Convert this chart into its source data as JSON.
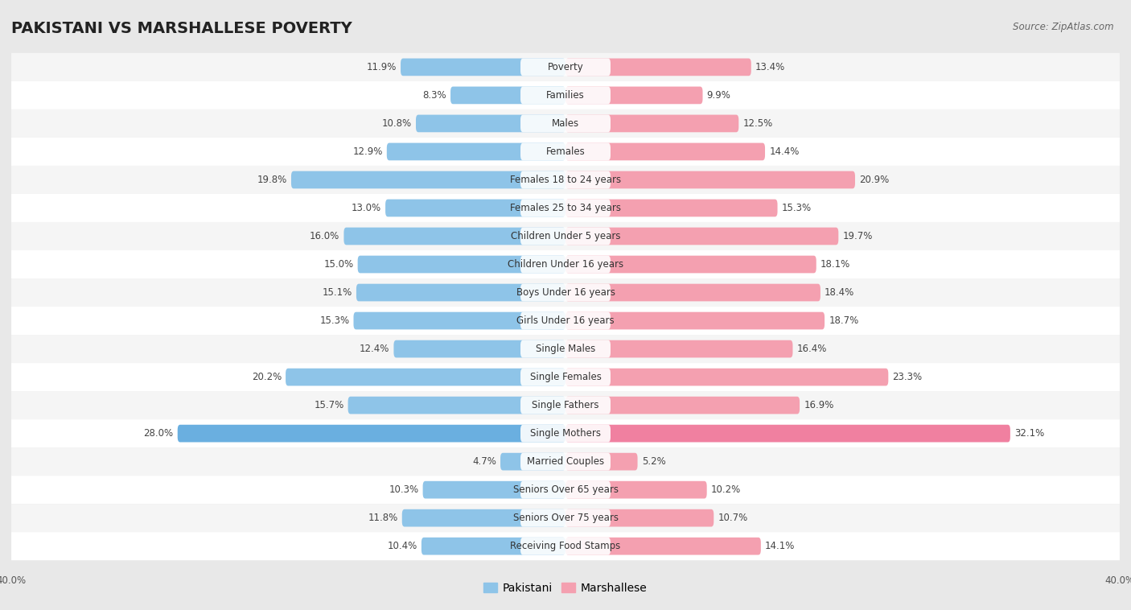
{
  "title": "PAKISTANI VS MARSHALLESE POVERTY",
  "source": "Source: ZipAtlas.com",
  "categories": [
    "Poverty",
    "Families",
    "Males",
    "Females",
    "Females 18 to 24 years",
    "Females 25 to 34 years",
    "Children Under 5 years",
    "Children Under 16 years",
    "Boys Under 16 years",
    "Girls Under 16 years",
    "Single Males",
    "Single Females",
    "Single Fathers",
    "Single Mothers",
    "Married Couples",
    "Seniors Over 65 years",
    "Seniors Over 75 years",
    "Receiving Food Stamps"
  ],
  "pakistani": [
    11.9,
    8.3,
    10.8,
    12.9,
    19.8,
    13.0,
    16.0,
    15.0,
    15.1,
    15.3,
    12.4,
    20.2,
    15.7,
    28.0,
    4.7,
    10.3,
    11.8,
    10.4
  ],
  "marshallese": [
    13.4,
    9.9,
    12.5,
    14.4,
    20.9,
    15.3,
    19.7,
    18.1,
    18.4,
    18.7,
    16.4,
    23.3,
    16.9,
    32.1,
    5.2,
    10.2,
    10.7,
    14.1
  ],
  "pakistani_color": "#8ec4e8",
  "marshallese_color": "#f4a0b0",
  "row_color_even": "#f0f0f0",
  "row_color_odd": "#ffffff",
  "bar_row_bg": "#ffffff",
  "axis_limit": 40.0,
  "bar_height": 0.62,
  "title_fontsize": 14,
  "label_fontsize": 8.5,
  "value_fontsize": 8.5,
  "legend_fontsize": 10,
  "single_mothers_pk_color": "#6aafe0",
  "single_mothers_ma_color": "#f080a0"
}
